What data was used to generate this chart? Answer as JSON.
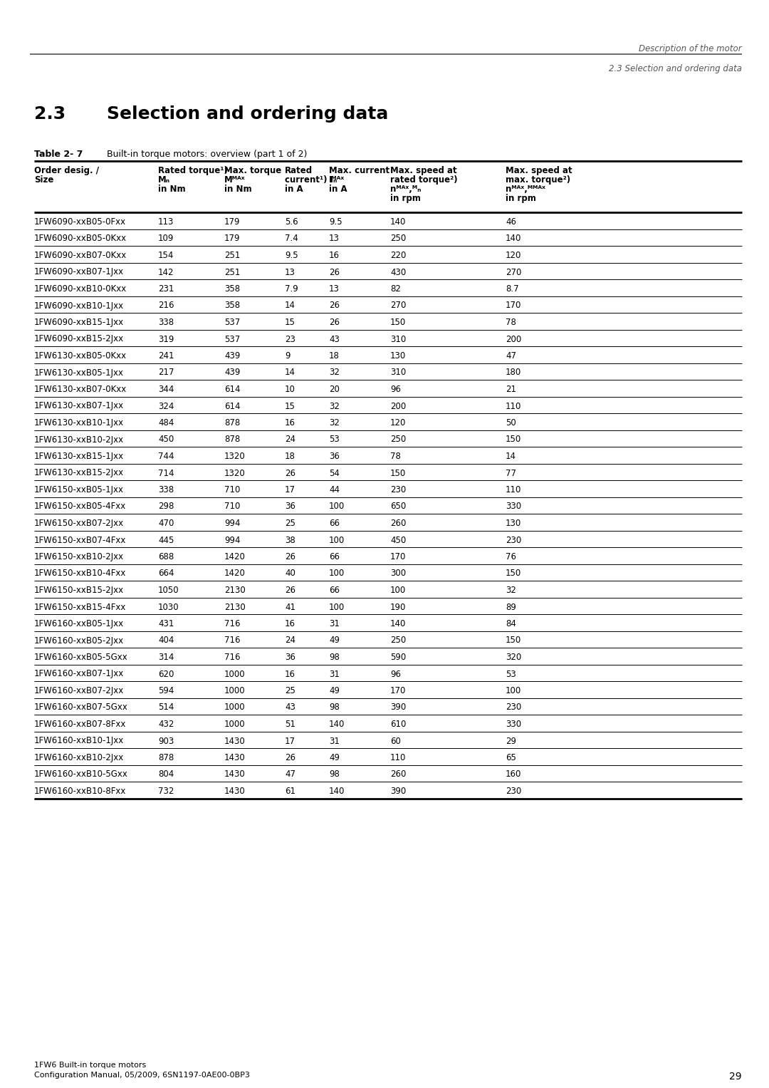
{
  "header_top_right_line1": "Description of the motor",
  "header_top_right_line2": "2.3 Selection and ordering data",
  "table_label": "Table 2- 7",
  "table_description": "Built-in torque motors: overview (part 1 of 2)",
  "rows": [
    [
      "1FW6090-xxB05-0Fxx",
      "113",
      "179",
      "5.6",
      "9.5",
      "140",
      "46"
    ],
    [
      "1FW6090-xxB05-0Kxx",
      "109",
      "179",
      "7.4",
      "13",
      "250",
      "140"
    ],
    [
      "1FW6090-xxB07-0Kxx",
      "154",
      "251",
      "9.5",
      "16",
      "220",
      "120"
    ],
    [
      "1FW6090-xxB07-1Jxx",
      "142",
      "251",
      "13",
      "26",
      "430",
      "270"
    ],
    [
      "1FW6090-xxB10-0Kxx",
      "231",
      "358",
      "7.9",
      "13",
      "82",
      "8.7"
    ],
    [
      "1FW6090-xxB10-1Jxx",
      "216",
      "358",
      "14",
      "26",
      "270",
      "170"
    ],
    [
      "1FW6090-xxB15-1Jxx",
      "338",
      "537",
      "15",
      "26",
      "150",
      "78"
    ],
    [
      "1FW6090-xxB15-2Jxx",
      "319",
      "537",
      "23",
      "43",
      "310",
      "200"
    ],
    [
      "1FW6130-xxB05-0Kxx",
      "241",
      "439",
      "9",
      "18",
      "130",
      "47"
    ],
    [
      "1FW6130-xxB05-1Jxx",
      "217",
      "439",
      "14",
      "32",
      "310",
      "180"
    ],
    [
      "1FW6130-xxB07-0Kxx",
      "344",
      "614",
      "10",
      "20",
      "96",
      "21"
    ],
    [
      "1FW6130-xxB07-1Jxx",
      "324",
      "614",
      "15",
      "32",
      "200",
      "110"
    ],
    [
      "1FW6130-xxB10-1Jxx",
      "484",
      "878",
      "16",
      "32",
      "120",
      "50"
    ],
    [
      "1FW6130-xxB10-2Jxx",
      "450",
      "878",
      "24",
      "53",
      "250",
      "150"
    ],
    [
      "1FW6130-xxB15-1Jxx",
      "744",
      "1320",
      "18",
      "36",
      "78",
      "14"
    ],
    [
      "1FW6130-xxB15-2Jxx",
      "714",
      "1320",
      "26",
      "54",
      "150",
      "77"
    ],
    [
      "1FW6150-xxB05-1Jxx",
      "338",
      "710",
      "17",
      "44",
      "230",
      "110"
    ],
    [
      "1FW6150-xxB05-4Fxx",
      "298",
      "710",
      "36",
      "100",
      "650",
      "330"
    ],
    [
      "1FW6150-xxB07-2Jxx",
      "470",
      "994",
      "25",
      "66",
      "260",
      "130"
    ],
    [
      "1FW6150-xxB07-4Fxx",
      "445",
      "994",
      "38",
      "100",
      "450",
      "230"
    ],
    [
      "1FW6150-xxB10-2Jxx",
      "688",
      "1420",
      "26",
      "66",
      "170",
      "76"
    ],
    [
      "1FW6150-xxB10-4Fxx",
      "664",
      "1420",
      "40",
      "100",
      "300",
      "150"
    ],
    [
      "1FW6150-xxB15-2Jxx",
      "1050",
      "2130",
      "26",
      "66",
      "100",
      "32"
    ],
    [
      "1FW6150-xxB15-4Fxx",
      "1030",
      "2130",
      "41",
      "100",
      "190",
      "89"
    ],
    [
      "1FW6160-xxB05-1Jxx",
      "431",
      "716",
      "16",
      "31",
      "140",
      "84"
    ],
    [
      "1FW6160-xxB05-2Jxx",
      "404",
      "716",
      "24",
      "49",
      "250",
      "150"
    ],
    [
      "1FW6160-xxB05-5Gxx",
      "314",
      "716",
      "36",
      "98",
      "590",
      "320"
    ],
    [
      "1FW6160-xxB07-1Jxx",
      "620",
      "1000",
      "16",
      "31",
      "96",
      "53"
    ],
    [
      "1FW6160-xxB07-2Jxx",
      "594",
      "1000",
      "25",
      "49",
      "170",
      "100"
    ],
    [
      "1FW6160-xxB07-5Gxx",
      "514",
      "1000",
      "43",
      "98",
      "390",
      "230"
    ],
    [
      "1FW6160-xxB07-8Fxx",
      "432",
      "1000",
      "51",
      "140",
      "610",
      "330"
    ],
    [
      "1FW6160-xxB10-1Jxx",
      "903",
      "1430",
      "17",
      "31",
      "60",
      "29"
    ],
    [
      "1FW6160-xxB10-2Jxx",
      "878",
      "1430",
      "26",
      "49",
      "110",
      "65"
    ],
    [
      "1FW6160-xxB10-5Gxx",
      "804",
      "1430",
      "47",
      "98",
      "260",
      "160"
    ],
    [
      "1FW6160-xxB10-8Fxx",
      "732",
      "1430",
      "61",
      "140",
      "390",
      "230"
    ]
  ],
  "footer_line1": "1FW6 Built-in torque motors",
  "footer_line2": "Configuration Manual, 05/2009, 6SN1197-0AE00-0BP3",
  "footer_page": "29",
  "bg_color": "#ffffff"
}
